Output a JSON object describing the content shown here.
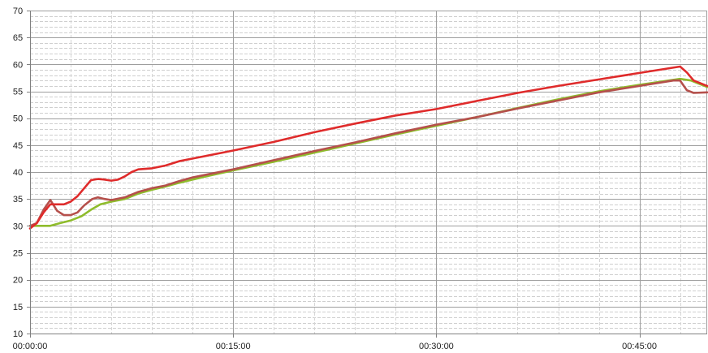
{
  "chart_data": {
    "type": "line",
    "title": "",
    "xlabel": "",
    "ylabel": "",
    "x_unit": "minutes",
    "xlim": [
      0,
      50
    ],
    "ylim": [
      10,
      70
    ],
    "x_tick_values": [
      0,
      15,
      30,
      45
    ],
    "x_tick_labels": [
      "00:00:00",
      "00:15:00",
      "00:30:00",
      "00:45:00"
    ],
    "y_major_ticks": [
      10,
      15,
      20,
      25,
      30,
      35,
      40,
      45,
      50,
      55,
      60,
      65,
      70
    ],
    "y_tick_labels": [
      "10",
      "15",
      "20",
      "25",
      "30",
      "35",
      "40",
      "45",
      "50",
      "55",
      "60",
      "65",
      "70"
    ],
    "y_minor_step": 1,
    "x_minor_step": 3,
    "grid": true,
    "legend": "none",
    "series": [
      {
        "color": "#8fbc2c",
        "points": [
          [
            0,
            30
          ],
          [
            0.5,
            30
          ],
          [
            1.5,
            30
          ],
          [
            2.2,
            30.5
          ],
          [
            3,
            31
          ],
          [
            3.8,
            31.8
          ],
          [
            4.5,
            33
          ],
          [
            5.2,
            34
          ],
          [
            6,
            34.5
          ],
          [
            7,
            35
          ],
          [
            8,
            36
          ],
          [
            9,
            36.7
          ],
          [
            10,
            37.3
          ],
          [
            11,
            38
          ],
          [
            12,
            38.6
          ],
          [
            13,
            39.2
          ],
          [
            15,
            40.3
          ],
          [
            18,
            41.9
          ],
          [
            21,
            43.6
          ],
          [
            24,
            45.3
          ],
          [
            27,
            47
          ],
          [
            30,
            48.6
          ],
          [
            33,
            50.2
          ],
          [
            36,
            51.9
          ],
          [
            39,
            53.5
          ],
          [
            42,
            55
          ],
          [
            45,
            56.2
          ],
          [
            48,
            57.3
          ],
          [
            48.8,
            57
          ],
          [
            49.3,
            56.5
          ],
          [
            50,
            55.8
          ]
        ]
      },
      {
        "color": "#b5504c",
        "points": [
          [
            0,
            30
          ],
          [
            0.5,
            30.5
          ],
          [
            1,
            33
          ],
          [
            1.5,
            34.8
          ],
          [
            2,
            32.8
          ],
          [
            2.5,
            32
          ],
          [
            3,
            32
          ],
          [
            3.5,
            32.5
          ],
          [
            4,
            33.8
          ],
          [
            4.6,
            35
          ],
          [
            5,
            35.3
          ],
          [
            5.5,
            35
          ],
          [
            6,
            34.8
          ],
          [
            7,
            35.3
          ],
          [
            8,
            36.3
          ],
          [
            9,
            37
          ],
          [
            10,
            37.5
          ],
          [
            11,
            38.3
          ],
          [
            12,
            39
          ],
          [
            13,
            39.5
          ],
          [
            15,
            40.5
          ],
          [
            18,
            42.2
          ],
          [
            21,
            43.9
          ],
          [
            24,
            45.5
          ],
          [
            27,
            47.2
          ],
          [
            30,
            48.8
          ],
          [
            33,
            50.2
          ],
          [
            36,
            51.8
          ],
          [
            39,
            53.3
          ],
          [
            42,
            54.8
          ],
          [
            45,
            56
          ],
          [
            47.5,
            57
          ],
          [
            48,
            57
          ],
          [
            48.5,
            55.2
          ],
          [
            49,
            54.7
          ],
          [
            50,
            54.8
          ]
        ]
      },
      {
        "color": "#df2b2b",
        "points": [
          [
            0,
            29.5
          ],
          [
            0.5,
            30.5
          ],
          [
            1,
            32.5
          ],
          [
            1.5,
            34
          ],
          [
            2,
            34
          ],
          [
            2.5,
            34
          ],
          [
            3,
            34.5
          ],
          [
            3.5,
            35.5
          ],
          [
            4,
            37
          ],
          [
            4.5,
            38.5
          ],
          [
            5,
            38.7
          ],
          [
            5.5,
            38.6
          ],
          [
            6,
            38.4
          ],
          [
            6.5,
            38.6
          ],
          [
            7,
            39.2
          ],
          [
            7.5,
            40
          ],
          [
            8,
            40.5
          ],
          [
            9,
            40.7
          ],
          [
            10,
            41.2
          ],
          [
            11,
            42
          ],
          [
            12,
            42.5
          ],
          [
            13,
            43
          ],
          [
            15,
            44
          ],
          [
            18,
            45.6
          ],
          [
            21,
            47.4
          ],
          [
            24,
            49
          ],
          [
            27,
            50.5
          ],
          [
            30,
            51.7
          ],
          [
            33,
            53.2
          ],
          [
            36,
            54.7
          ],
          [
            39,
            56
          ],
          [
            42,
            57.2
          ],
          [
            45,
            58.4
          ],
          [
            47,
            59.2
          ],
          [
            48,
            59.6
          ],
          [
            48.5,
            58.5
          ],
          [
            49,
            57
          ],
          [
            50,
            56
          ]
        ]
      }
    ]
  }
}
